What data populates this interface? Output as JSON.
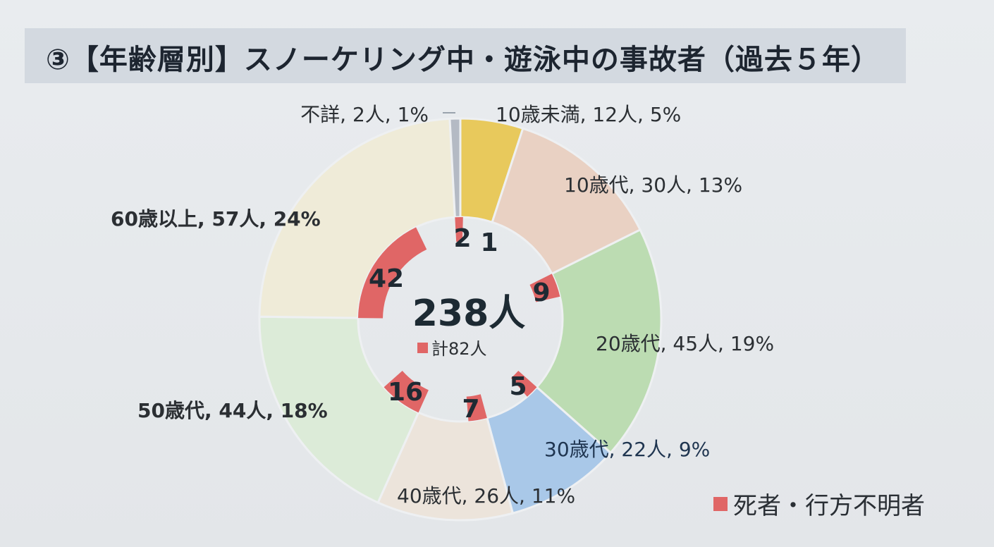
{
  "title": "③【年齢層別】スノーケリング中・遊泳中の事故者（過去５年）",
  "legend": {
    "label": "死者・行方不明者",
    "color": "#e06666"
  },
  "chart_data": {
    "type": "pie",
    "subtype": "donut",
    "title": "③【年齢層別】スノーケリング中・遊泳中の事故者（過去５年）",
    "center_total": "238人",
    "center_deaths_label": "計82人",
    "total": 238,
    "deaths_total": 82,
    "categories": [
      "10歳未満",
      "10歳代",
      "20歳代",
      "30歳代",
      "40歳代",
      "50歳代",
      "60歳以上",
      "不詳"
    ],
    "series": [
      {
        "name": "事故者",
        "values": [
          12,
          30,
          45,
          22,
          26,
          44,
          57,
          2
        ],
        "percent": [
          "5%",
          "13%",
          "19%",
          "9%",
          "11%",
          "18%",
          "24%",
          "1%"
        ]
      },
      {
        "name": "死者・行方不明者",
        "values": [
          1,
          0,
          9,
          5,
          7,
          16,
          42,
          2
        ]
      }
    ],
    "unit": "人",
    "colors": [
      "#e8c95c",
      "#e9d1c3",
      "#bcdcb2",
      "#a9c8e8",
      "#ece4db",
      "#dcebd8",
      "#efebd8",
      "#b4bac4"
    ],
    "death_color": "#e06666",
    "legend_position": "bottom-right"
  }
}
